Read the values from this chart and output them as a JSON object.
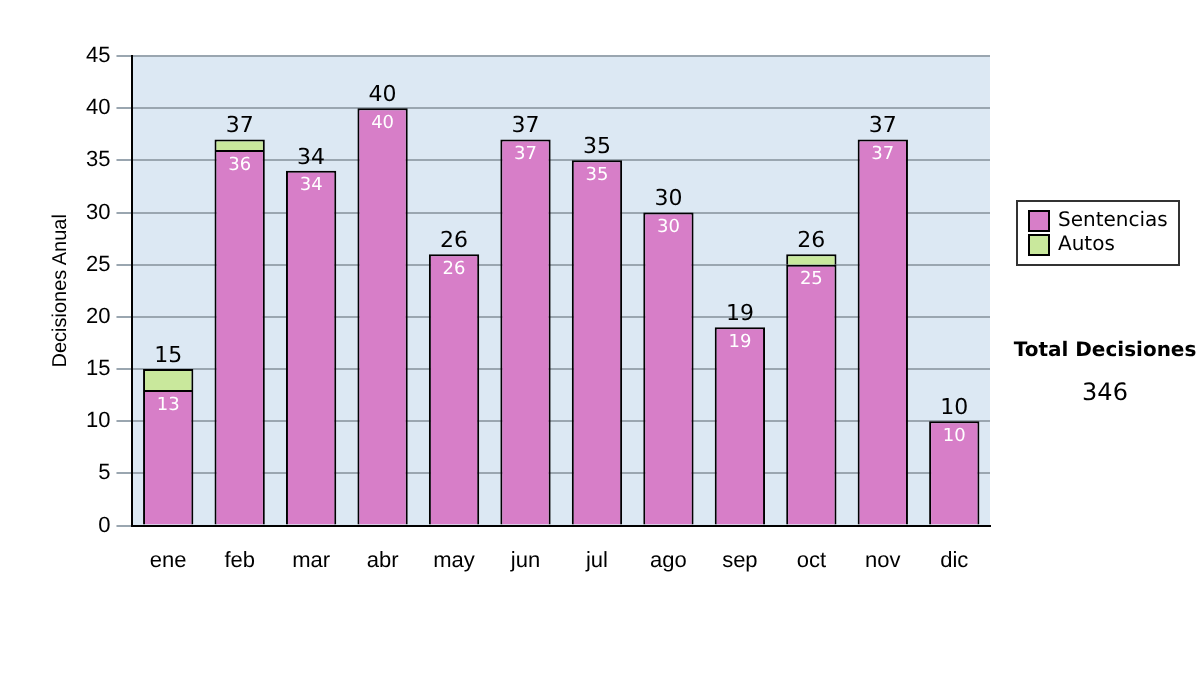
{
  "chart_data": {
    "type": "bar",
    "stacked": true,
    "ylabel": "Decisiones Anual",
    "categories": [
      "ene",
      "feb",
      "mar",
      "abr",
      "may",
      "jun",
      "jul",
      "ago",
      "sep",
      "oct",
      "nov",
      "dic"
    ],
    "series": [
      {
        "name": "Sentencias",
        "color": "#d77ec8",
        "values": [
          13,
          36,
          34,
          40,
          26,
          37,
          35,
          30,
          19,
          25,
          37,
          10
        ],
        "value_labels": [
          "13",
          "36",
          "34",
          "40",
          "26",
          "37",
          "35",
          "30",
          "19",
          "25",
          "37",
          "10"
        ]
      },
      {
        "name": "Autos",
        "color": "#c9e89c",
        "values": [
          2,
          1,
          0,
          0,
          0,
          0,
          0,
          0,
          0,
          1,
          0,
          0
        ]
      }
    ],
    "totals": [
      "15",
      "37",
      "34",
      "40",
      "26",
      "37",
      "35",
      "30",
      "19",
      "26",
      "37",
      "10"
    ],
    "ylim": [
      0,
      45
    ],
    "yticks": [
      0,
      5,
      10,
      15,
      20,
      25,
      30,
      35,
      40,
      45
    ],
    "grid": "y",
    "legend": "right",
    "annotations": [
      "Total Decisiones",
      "346"
    ]
  }
}
